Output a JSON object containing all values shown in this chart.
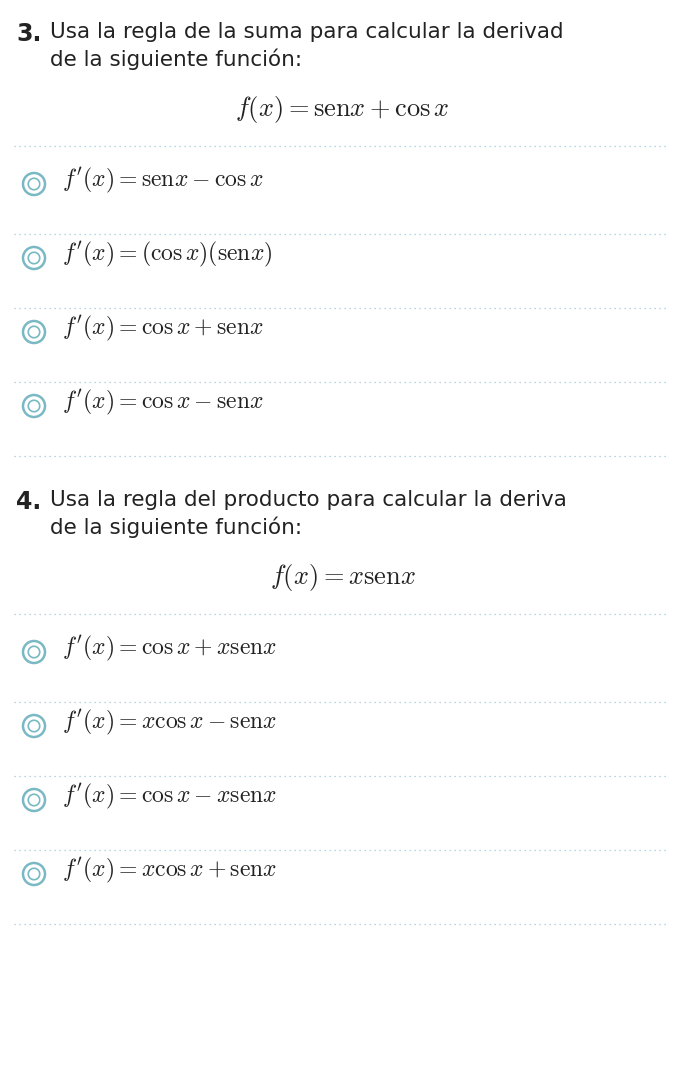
{
  "bg_color": "#ffffff",
  "text_color": "#222222",
  "circle_outer_color": "#7ab8c4",
  "circle_inner_color": "#7ab8c4",
  "divider_color": "#a0c8d8",
  "q3_number": "3.",
  "q3_header1": "Usa la regla de la suma para calcular la derivad",
  "q3_header2": "de la siguiente función:",
  "q3_formula": "$f(x) = \\mathrm{sen}x + \\cos x$",
  "q3_options": [
    "$f'(x) = \\mathrm{sen}x - \\cos x$",
    "$f'(x) = (\\cos x)(\\mathrm{sen}x)$",
    "$f'(x) = \\cos x + \\mathrm{sen}x$",
    "$f'(x) = \\cos x - \\mathrm{sen}x$"
  ],
  "q4_number": "4.",
  "q4_header1": "Usa la regla del producto para calcular la deriva",
  "q4_header2": "de la siguiente función:",
  "q4_formula": "$f(x) = x\\mathrm{sen}x$",
  "q4_options": [
    "$f'(x) = \\cos x + x\\mathrm{sen}x$",
    "$f'(x) = x\\cos x - \\mathrm{sen}x$",
    "$f'(x) = \\cos x - x\\mathrm{sen}x$",
    "$f'(x) = x\\cos x + \\mathrm{sen}x$"
  ],
  "fig_width": 6.85,
  "fig_height": 10.73,
  "dpi": 100
}
